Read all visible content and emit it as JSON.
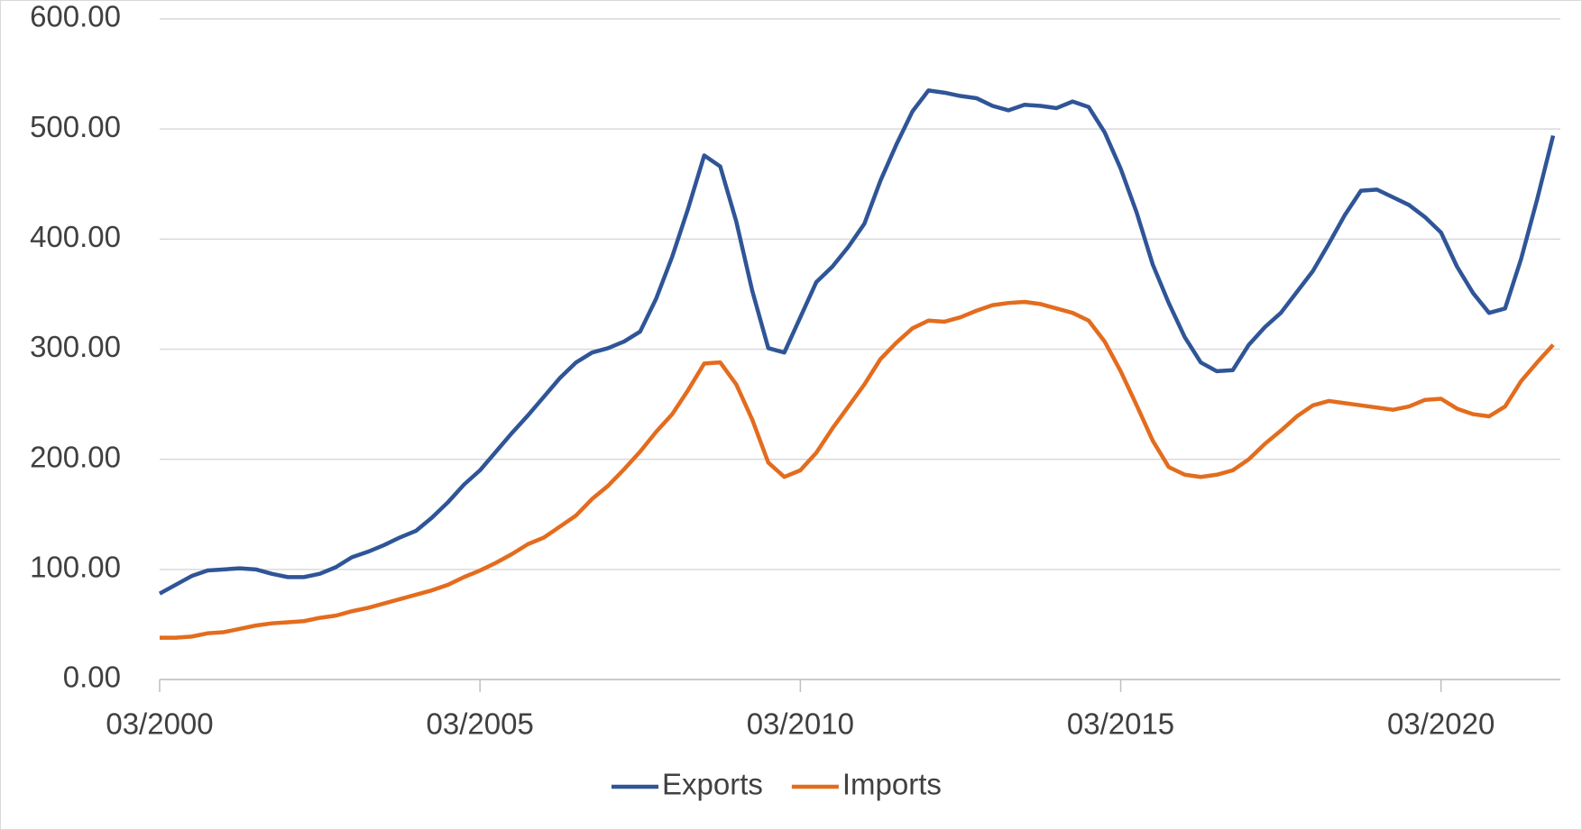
{
  "chart_data": {
    "type": "line",
    "categories": [
      "03/2000",
      null,
      null,
      null,
      null,
      null,
      null,
      null,
      null,
      null,
      null,
      null,
      null,
      null,
      null,
      null,
      null,
      null,
      null,
      null,
      "03/2005",
      null,
      null,
      null,
      null,
      null,
      null,
      null,
      null,
      null,
      null,
      null,
      null,
      null,
      null,
      null,
      null,
      null,
      null,
      null,
      "03/2010",
      null,
      null,
      null,
      null,
      null,
      null,
      null,
      null,
      null,
      null,
      null,
      null,
      null,
      null,
      null,
      null,
      null,
      null,
      null,
      "03/2015",
      null,
      null,
      null,
      null,
      null,
      null,
      null,
      null,
      null,
      null,
      null,
      null,
      null,
      null,
      null,
      null,
      null,
      null,
      null,
      "03/2020",
      null,
      null,
      null,
      null,
      null,
      null,
      null
    ],
    "series": [
      {
        "name": "Exports",
        "color": "#2f5597",
        "values": [
          78,
          86,
          94,
          99,
          100,
          101,
          100,
          96,
          93,
          93,
          96,
          102,
          111,
          116,
          122,
          129,
          135,
          147,
          161,
          177,
          190,
          207,
          224,
          240,
          257,
          274,
          288,
          297,
          301,
          307,
          316,
          346,
          384,
          428,
          476,
          466,
          416,
          353,
          301,
          297,
          329,
          361,
          375,
          393,
          414,
          453,
          486,
          516,
          535,
          533,
          530,
          528,
          521,
          517,
          522,
          521,
          519,
          525,
          520,
          497,
          464,
          424,
          377,
          342,
          311,
          288,
          280,
          281,
          304,
          320,
          333,
          352,
          371,
          396,
          422,
          444,
          445,
          438,
          431,
          420,
          406,
          375,
          351,
          333,
          337,
          382,
          436,
          494
        ]
      },
      {
        "name": "Imports",
        "color": "#e36c1e",
        "values": [
          38,
          38,
          39,
          42,
          43,
          46,
          49,
          51,
          52,
          53,
          56,
          58,
          62,
          65,
          69,
          73,
          77,
          81,
          86,
          93,
          99,
          106,
          114,
          123,
          129,
          139,
          149,
          164,
          176,
          191,
          207,
          225,
          241,
          263,
          287,
          288,
          268,
          236,
          197,
          184,
          190,
          206,
          228,
          248,
          268,
          291,
          306,
          319,
          326,
          325,
          329,
          335,
          340,
          342,
          343,
          341,
          337,
          333,
          326,
          307,
          280,
          249,
          217,
          193,
          186,
          184,
          186,
          190,
          200,
          214,
          226,
          239,
          249,
          253,
          251,
          249,
          247,
          245,
          248,
          254,
          255,
          246,
          241,
          239,
          248,
          271,
          288,
          304
        ]
      }
    ],
    "ylim": [
      0,
      600
    ],
    "yticks": [
      {
        "value": 0,
        "label": "0.00"
      },
      {
        "value": 100,
        "label": "100.00"
      },
      {
        "value": 200,
        "label": "200.00"
      },
      {
        "value": 300,
        "label": "300.00"
      },
      {
        "value": 400,
        "label": "400.00"
      },
      {
        "value": 500,
        "label": "500.00"
      },
      {
        "value": 600,
        "label": "600.00"
      }
    ],
    "grid": true,
    "legend": "bottom"
  }
}
